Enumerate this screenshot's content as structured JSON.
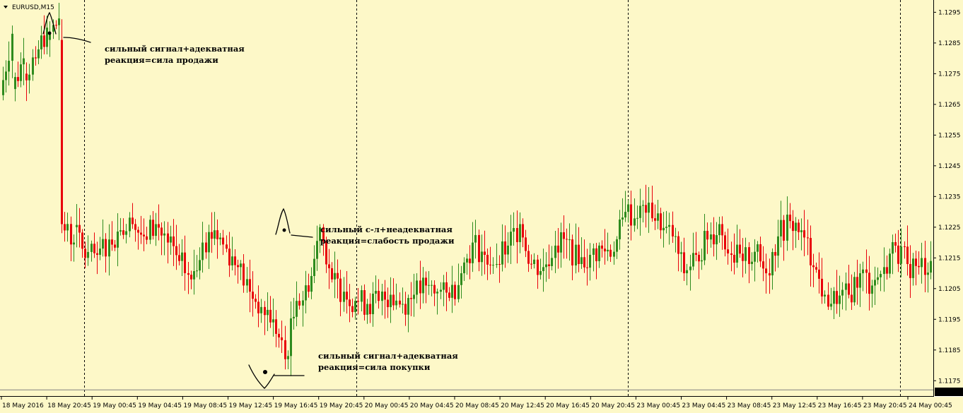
{
  "chart_data": {
    "type": "candlestick",
    "symbol_label": "EURUSD,M15",
    "colors": {
      "background": "#fdf8c8",
      "bull": "#2e8b1e",
      "bear": "#e8000b",
      "separator": "#000000",
      "bid_line": "#808080",
      "price_label_bg": "#000000",
      "price_label_fg": "#ffffff"
    },
    "ylim": [
      1.117,
      1.1299
    ],
    "y_ticks": [
      "1.1295",
      "1.1285",
      "1.1275",
      "1.1265",
      "1.1255",
      "1.1245",
      "1.1235",
      "1.1225",
      "1.1215",
      "1.1205",
      "1.1195",
      "1.1185",
      "1.1175"
    ],
    "current_price": "1.1172",
    "x_ticks": [
      "18 May 2016",
      "18 May 20:45",
      "19 May 00:45",
      "19 May 04:45",
      "19 May 08:45",
      "19 May 12:45",
      "19 May 16:45",
      "19 May 20:45",
      "20 May 00:45",
      "20 May 04:45",
      "20 May 08:45",
      "20 May 12:45",
      "20 May 16:45",
      "20 May 20:45",
      "23 May 00:45",
      "23 May 04:45",
      "23 May 08:45",
      "23 May 12:45",
      "23 May 16:45",
      "23 May 20:45",
      "24 May 00:45"
    ],
    "separators_after_tick": [
      1,
      7,
      13,
      19
    ],
    "anchors": [
      [
        1.1268,
        1.1288
      ],
      [
        1.127,
        1.128
      ],
      [
        1.1275,
        1.128
      ],
      [
        1.128,
        1.129
      ],
      [
        1.1286,
        1.1293
      ],
      [
        1.1286,
        1.1226
      ],
      [
        1.1226,
        1.122
      ],
      [
        1.1225,
        1.1215
      ],
      [
        1.1215,
        1.1216
      ],
      [
        1.1216,
        1.1221
      ],
      [
        1.1221,
        1.1224
      ],
      [
        1.1224,
        1.1226
      ],
      [
        1.1226,
        1.1222
      ],
      [
        1.1222,
        1.1226
      ],
      [
        1.1226,
        1.122
      ],
      [
        1.122,
        1.1214
      ],
      [
        1.1214,
        1.1208
      ],
      [
        1.1208,
        1.122
      ],
      [
        1.122,
        1.1224
      ],
      [
        1.1224,
        1.1218
      ],
      [
        1.1218,
        1.1212
      ],
      [
        1.1212,
        1.1204
      ],
      [
        1.1204,
        1.1199
      ],
      [
        1.1199,
        1.1195
      ],
      [
        1.1195,
        1.1182
      ],
      [
        1.1182,
        1.1201
      ],
      [
        1.1201,
        1.1204
      ],
      [
        1.1204,
        1.1225
      ],
      [
        1.1225,
        1.1208
      ],
      [
        1.1208,
        1.1204
      ],
      [
        1.1204,
        1.1201
      ],
      [
        1.1201,
        1.12
      ],
      [
        1.12,
        1.1201
      ],
      [
        1.1201,
        1.1203
      ],
      [
        1.1203,
        1.12
      ],
      [
        1.12,
        1.1203
      ],
      [
        1.1203,
        1.1206
      ],
      [
        1.1206,
        1.1204
      ],
      [
        1.1204,
        1.1202
      ],
      [
        1.1202,
        1.121
      ],
      [
        1.121,
        1.122
      ],
      [
        1.122,
        1.1216
      ],
      [
        1.1216,
        1.1213
      ],
      [
        1.1213,
        1.1219
      ],
      [
        1.1219,
        1.1226
      ],
      [
        1.1226,
        1.1213
      ],
      [
        1.1213,
        1.1212
      ],
      [
        1.1212,
        1.1219
      ],
      [
        1.1219,
        1.1221
      ],
      [
        1.1221,
        1.1213
      ],
      [
        1.1213,
        1.1216
      ],
      [
        1.1216,
        1.1218
      ],
      [
        1.1218,
        1.1217
      ],
      [
        1.1217,
        1.123
      ],
      [
        1.123,
        1.1228
      ],
      [
        1.1228,
        1.1233
      ],
      [
        1.1233,
        1.1224
      ],
      [
        1.1224,
        1.1222
      ],
      [
        1.1222,
        1.121
      ],
      [
        1.121,
        1.1216
      ],
      [
        1.1216,
        1.1221
      ],
      [
        1.1221,
        1.1226
      ],
      [
        1.1226,
        1.1216
      ],
      [
        1.1216,
        1.1214
      ],
      [
        1.1214,
        1.1217
      ],
      [
        1.1217,
        1.121
      ],
      [
        1.121,
        1.1222
      ],
      [
        1.1222,
        1.1227
      ],
      [
        1.1227,
        1.1224
      ],
      [
        1.1224,
        1.1212
      ],
      [
        1.1212,
        1.1203
      ],
      [
        1.1203,
        1.12
      ],
      [
        1.12,
        1.1203
      ],
      [
        1.1203,
        1.121
      ],
      [
        1.121,
        1.1206
      ],
      [
        1.1206,
        1.1212
      ],
      [
        1.1212,
        1.1219
      ],
      [
        1.1219,
        1.1213
      ],
      [
        1.1213,
        1.1212
      ],
      [
        1.1212,
        1.1214
      ]
    ],
    "annotations": [
      {
        "line1": "сильный сигнал+адекватная",
        "line2": "реакция=сила продажи"
      },
      {
        "line1": "сильный с-л+неадекватная",
        "line2": "реакция=слабость продажи"
      },
      {
        "line1": "сильный сигнал+адекватная",
        "line2": "реакция=сила покупки"
      }
    ]
  }
}
